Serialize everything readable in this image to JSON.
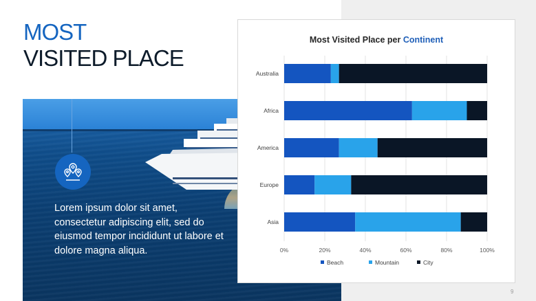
{
  "title": {
    "line1": "MOST",
    "line2": "VISITED PLACE"
  },
  "body_text": "Lorem ipsum dolor sit amet, consectetur adipiscing elit, sed do eiusmod tempor incididunt ut labore et dolore magna aliqua.",
  "page_number": "9",
  "icons": {
    "location": "location-pins-icon"
  },
  "colors": {
    "accent": "#1565c0",
    "dark": "#0d1b2a",
    "beach": "#1455c0",
    "mountain": "#29a3ea",
    "city": "#0a1626"
  },
  "chart_title": {
    "main": "Most Visited Place per",
    "accent": "Continent"
  },
  "chart_data": {
    "type": "bar",
    "orientation": "horizontal-stacked-100",
    "categories": [
      "Australia",
      "Africa",
      "America",
      "Europe",
      "Asia"
    ],
    "series": [
      {
        "name": "Beach",
        "values": [
          23,
          63,
          27,
          15,
          35
        ]
      },
      {
        "name": "Mountain",
        "values": [
          4,
          27,
          19,
          18,
          52
        ]
      },
      {
        "name": "City",
        "values": [
          73,
          10,
          54,
          67,
          13
        ]
      }
    ],
    "xlim": [
      0,
      100
    ],
    "x_ticks": [
      "0%",
      "20%",
      "40%",
      "60%",
      "80%",
      "100%"
    ],
    "legend": "bottom",
    "grid": true
  }
}
